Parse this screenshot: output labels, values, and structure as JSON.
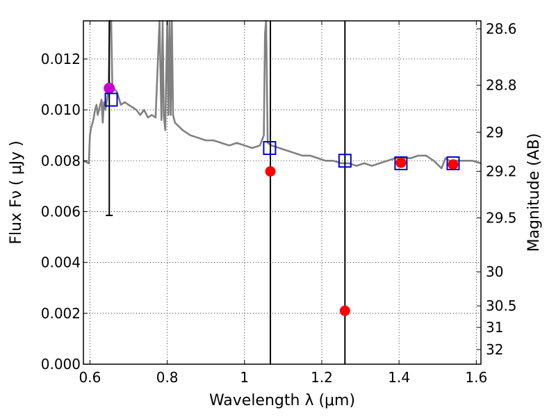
{
  "chart_data": {
    "type": "line",
    "xlabel": "Wavelength  λ (μm)",
    "ylabel": "Flux  Fν  ( μJy )",
    "y2label": "Magnitude (AB)",
    "xlim": [
      0.583,
      1.612
    ],
    "ylim": [
      0.0,
      0.0135
    ],
    "grid": true,
    "grid_style": "dotted",
    "x_ticks": [
      0.6,
      0.8,
      1.0,
      1.2,
      1.4,
      1.6
    ],
    "x_tick_labels": [
      "0.6",
      "0.8",
      "1",
      "1.2",
      "1.4",
      "1.6"
    ],
    "y_ticks": [
      0.0,
      0.002,
      0.004,
      0.006,
      0.008,
      0.01,
      0.012
    ],
    "y_tick_labels": [
      "0.000",
      "0.002",
      "0.004",
      "0.006",
      "0.008",
      "0.010",
      "0.012"
    ],
    "mag_ticks": [
      28.6,
      28.8,
      29,
      29.2,
      29.5,
      30,
      30.5,
      31,
      32
    ],
    "mag_tick_labels": [
      "28.6",
      "28.8",
      "29",
      "29.2",
      "29.5",
      "30",
      "30.5",
      "31",
      "32"
    ],
    "series": [
      {
        "kind": "spectrum",
        "color": "#808080",
        "x": [
          0.583,
          0.597,
          0.6,
          0.603,
          0.607,
          0.61,
          0.613,
          0.617,
          0.62,
          0.625,
          0.63,
          0.633,
          0.636,
          0.64,
          0.645,
          0.648,
          0.651,
          0.655,
          0.658,
          0.66,
          0.665,
          0.67,
          0.68,
          0.69,
          0.7,
          0.71,
          0.72,
          0.73,
          0.74,
          0.75,
          0.76,
          0.77,
          0.78,
          0.785,
          0.788,
          0.791,
          0.795,
          0.8,
          0.803,
          0.806,
          0.809,
          0.812,
          0.815,
          0.82,
          0.84,
          0.86,
          0.88,
          0.9,
          0.92,
          0.94,
          0.96,
          0.98,
          1.0,
          1.02,
          1.04,
          1.05,
          1.053,
          1.056,
          1.06,
          1.07,
          1.09,
          1.11,
          1.13,
          1.15,
          1.17,
          1.19,
          1.21,
          1.23,
          1.25,
          1.27,
          1.29,
          1.31,
          1.33,
          1.35,
          1.37,
          1.39,
          1.41,
          1.43,
          1.45,
          1.47,
          1.49,
          1.51,
          1.52,
          1.53,
          1.55,
          1.57,
          1.59,
          1.612
        ],
        "values": [
          0.008,
          0.0079,
          0.009,
          0.0093,
          0.0095,
          0.0097,
          0.01,
          0.0102,
          0.0098,
          0.0101,
          0.0104,
          0.0095,
          0.0103,
          0.01,
          0.0105,
          0.0108,
          0.014,
          0.014,
          0.0108,
          0.0109,
          0.0108,
          0.0107,
          0.0102,
          0.0103,
          0.0102,
          0.0101,
          0.01,
          0.0098,
          0.01,
          0.0097,
          0.0098,
          0.0097,
          0.014,
          0.0096,
          0.014,
          0.0098,
          0.0092,
          0.014,
          0.0098,
          0.014,
          0.0098,
          0.014,
          0.0098,
          0.0095,
          0.0092,
          0.009,
          0.0089,
          0.0088,
          0.0088,
          0.0087,
          0.0086,
          0.0087,
          0.0086,
          0.0085,
          0.0086,
          0.009,
          0.013,
          0.014,
          0.0087,
          0.0086,
          0.0085,
          0.0084,
          0.0083,
          0.0082,
          0.0082,
          0.0081,
          0.008,
          0.008,
          0.0079,
          0.0079,
          0.0078,
          0.0079,
          0.0078,
          0.0079,
          0.008,
          0.0081,
          0.0081,
          0.0081,
          0.0082,
          0.0082,
          0.008,
          0.0077,
          0.0081,
          0.008,
          0.008,
          0.008,
          0.008,
          0.0079
        ]
      }
    ],
    "model_photometry": {
      "marker": "open-square",
      "color": "#0000cc",
      "x": [
        0.655,
        1.065,
        1.26,
        1.405,
        1.54
      ],
      "values": [
        0.0104,
        0.0085,
        0.008,
        0.0079,
        0.0079
      ]
    },
    "observed_photometry": {
      "marker": "filled-circle",
      "color": "#ff0000",
      "x": [
        1.067,
        1.26,
        1.405,
        1.54
      ],
      "values": [
        0.00758,
        0.0021,
        0.00792,
        0.00785
      ],
      "errorbar_up": [
        0.0135,
        0.0135,
        null,
        null
      ],
      "errorbar_down": [
        0.0,
        0.0,
        null,
        null
      ]
    },
    "highlight_point": {
      "marker": "filled-circle",
      "color": "#cc00cc",
      "x": 0.65,
      "value": 0.01085,
      "errorbar_up": 0.0135,
      "errorbar_down": 0.00585
    }
  }
}
